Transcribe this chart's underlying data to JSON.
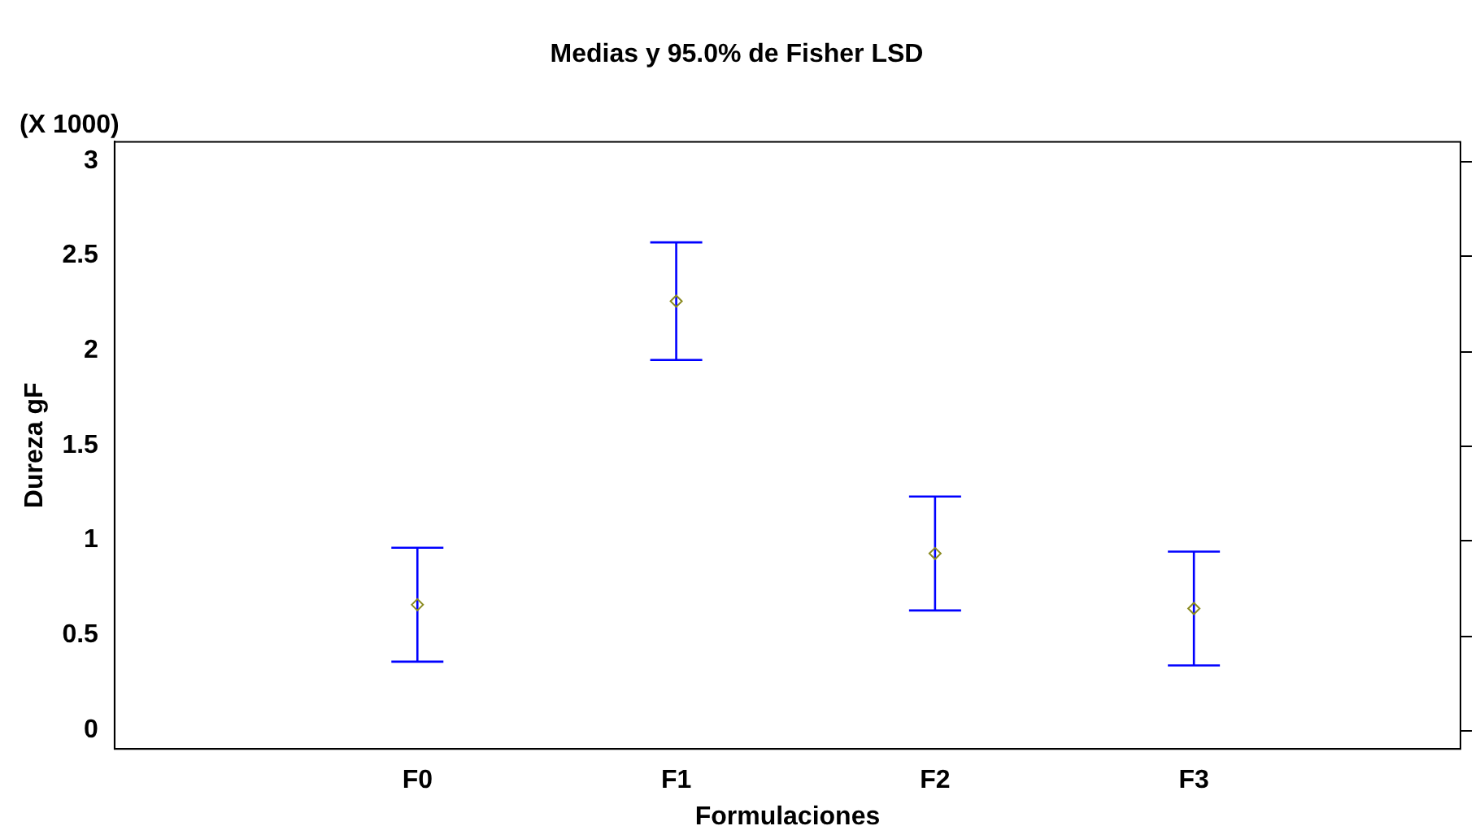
{
  "chart_data": {
    "type": "scatter",
    "title": "Medias y 95.0% de Fisher LSD",
    "xlabel": "Formulaciones",
    "ylabel": "Dureza gF",
    "annotations": [
      "(X 1000)"
    ],
    "categories": [
      "F0",
      "F1",
      "F2",
      "F3"
    ],
    "series": [
      {
        "color": "#8a8a20",
        "values": [
          0.66,
          2.26,
          0.93,
          0.64
        ],
        "errors": [
          0.3,
          0.31,
          0.3,
          0.3
        ]
      }
    ],
    "ylim": [
      -0.1,
      3.1
    ],
    "yticks": [
      0,
      0.5,
      1,
      1.5,
      2,
      2.5,
      3
    ],
    "grid": false,
    "legend": false,
    "marker": "diamond"
  }
}
